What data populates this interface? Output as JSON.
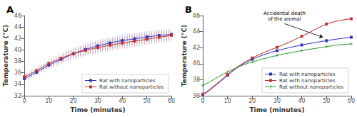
{
  "chart_data": [
    {
      "type": "line",
      "title": "A",
      "xlabel": "Time (minutes)",
      "ylabel": "Temperature (°C)",
      "xlim": [
        0,
        60
      ],
      "ylim": [
        32,
        46
      ],
      "xticks": [
        0,
        10,
        20,
        30,
        40,
        50,
        60
      ],
      "yticks": [
        32,
        34,
        36,
        38,
        40,
        42,
        44,
        46
      ],
      "grid": false,
      "legend": "lower right",
      "series": [
        {
          "name": "Rat with nanoparticles",
          "color": "#3333bb",
          "marker": "s",
          "x": [
            0,
            1,
            2,
            3,
            4,
            5,
            6,
            7,
            8,
            9,
            10,
            11,
            12,
            13,
            14,
            15,
            16,
            17,
            18,
            19,
            20,
            21,
            22,
            23,
            24,
            25,
            26,
            27,
            28,
            29,
            30,
            31,
            32,
            33,
            34,
            35,
            36,
            37,
            38,
            39,
            40,
            41,
            42,
            43,
            44,
            45,
            46,
            47,
            48,
            49,
            50,
            51,
            52,
            53,
            54,
            55,
            56,
            57,
            58,
            59,
            60
          ],
          "values": [
            35.0,
            35.2,
            35.4,
            35.65,
            35.9,
            36.1,
            36.35,
            36.6,
            36.85,
            37.1,
            37.35,
            37.55,
            37.75,
            37.95,
            38.15,
            38.35,
            38.55,
            38.75,
            38.95,
            39.15,
            39.35,
            39.5,
            39.65,
            39.8,
            39.95,
            40.1,
            40.22,
            40.35,
            40.47,
            40.6,
            40.72,
            40.82,
            40.92,
            41.02,
            41.12,
            41.22,
            41.32,
            41.4,
            41.48,
            41.56,
            41.64,
            41.7,
            41.76,
            41.82,
            41.88,
            41.95,
            42.02,
            42.08,
            42.14,
            42.2,
            42.27,
            42.33,
            42.38,
            42.43,
            42.48,
            42.52,
            42.57,
            42.61,
            42.65,
            42.68,
            42.72
          ],
          "yerr": [
            0.55,
            0.56,
            0.57,
            0.58,
            0.59,
            0.6,
            0.62,
            0.64,
            0.66,
            0.68,
            0.7,
            0.72,
            0.74,
            0.76,
            0.78,
            0.8,
            0.82,
            0.84,
            0.86,
            0.88,
            0.9,
            0.91,
            0.92,
            0.93,
            0.94,
            0.95,
            0.96,
            0.97,
            0.97,
            0.98,
            0.98,
            0.99,
            0.99,
            0.99,
            1.0,
            1.0,
            1.0,
            1.0,
            1.0,
            1.0,
            1.0,
            1.0,
            1.0,
            1.0,
            1.0,
            1.0,
            1.0,
            1.0,
            1.0,
            1.0,
            1.0,
            1.0,
            1.0,
            1.0,
            1.0,
            1.0,
            1.0,
            1.0,
            1.0,
            1.0,
            1.0
          ]
        },
        {
          "name": "Rat without nanoparticles",
          "color": "#bb3333",
          "marker": "s",
          "x": [
            0,
            1,
            2,
            3,
            4,
            5,
            6,
            7,
            8,
            9,
            10,
            11,
            12,
            13,
            14,
            15,
            16,
            17,
            18,
            19,
            20,
            21,
            22,
            23,
            24,
            25,
            26,
            27,
            28,
            29,
            30,
            31,
            32,
            33,
            34,
            35,
            36,
            37,
            38,
            39,
            40,
            41,
            42,
            43,
            44,
            45,
            46,
            47,
            48,
            49,
            50,
            51,
            52,
            53,
            54,
            55,
            56,
            57,
            58,
            59,
            60
          ],
          "values": [
            35.3,
            35.5,
            35.72,
            35.95,
            36.18,
            36.4,
            36.65,
            36.9,
            37.15,
            37.4,
            37.62,
            37.82,
            38.0,
            38.18,
            38.36,
            38.54,
            38.72,
            38.88,
            39.04,
            39.18,
            39.32,
            39.45,
            39.58,
            39.7,
            39.82,
            39.93,
            40.03,
            40.13,
            40.22,
            40.32,
            40.42,
            40.5,
            40.58,
            40.66,
            40.75,
            40.83,
            40.91,
            40.99,
            41.06,
            41.13,
            41.2,
            41.27,
            41.34,
            41.4,
            41.47,
            41.54,
            41.6,
            41.67,
            41.73,
            41.8,
            41.87,
            41.93,
            42.0,
            42.07,
            42.14,
            42.2,
            42.27,
            42.34,
            42.4,
            42.47,
            42.55
          ],
          "yerr": [
            0.55,
            0.56,
            0.57,
            0.58,
            0.59,
            0.6,
            0.62,
            0.64,
            0.66,
            0.68,
            0.7,
            0.72,
            0.74,
            0.76,
            0.78,
            0.8,
            0.82,
            0.84,
            0.86,
            0.88,
            0.9,
            0.91,
            0.92,
            0.93,
            0.94,
            0.95,
            0.96,
            0.97,
            0.97,
            0.98,
            0.98,
            0.99,
            0.99,
            0.99,
            1.0,
            1.0,
            1.0,
            1.0,
            1.0,
            1.0,
            1.0,
            1.0,
            1.0,
            1.0,
            1.0,
            1.0,
            1.0,
            1.0,
            1.0,
            1.0,
            1.0,
            1.0,
            1.0,
            1.0,
            1.0,
            1.0,
            1.0,
            1.0,
            1.0,
            1.0,
            1.0
          ]
        }
      ]
    },
    {
      "type": "line",
      "title": "B",
      "xlabel": "Time (minutes)",
      "ylabel": "Temperature (°C)",
      "xlim": [
        0,
        60
      ],
      "ylim": [
        36,
        46
      ],
      "xticks": [
        0,
        10,
        20,
        30,
        40,
        50,
        60
      ],
      "yticks": [
        36,
        38,
        40,
        42,
        44,
        46
      ],
      "grid": false,
      "legend": "lower right",
      "annotations": [
        {
          "text": "Accidental death\nof the animal",
          "xy": [
            48.5,
            43.3
          ],
          "xytext": [
            33,
            45.0
          ]
        }
      ],
      "series": [
        {
          "name": "Rat with nanoparticles",
          "color": "#3333bb",
          "marker": "s",
          "x": [
            0,
            2,
            4,
            6,
            8,
            10,
            12,
            14,
            16,
            18,
            20,
            22,
            24,
            26,
            28,
            30,
            32,
            34,
            36,
            38,
            40,
            42,
            44,
            46,
            48,
            50,
            52,
            54,
            56,
            58,
            60
          ],
          "values": [
            36.1,
            36.5,
            37.0,
            37.5,
            38.0,
            38.55,
            39.05,
            39.5,
            39.9,
            40.25,
            40.55,
            40.8,
            41.05,
            41.25,
            41.45,
            41.62,
            41.78,
            41.93,
            42.07,
            42.2,
            42.33,
            42.45,
            42.56,
            42.67,
            42.77,
            42.87,
            42.97,
            43.06,
            43.15,
            43.23,
            43.3
          ],
          "yerr": [
            0.1,
            0.1,
            0.1,
            0.1,
            0.1,
            0.1,
            0.1,
            0.1,
            0.1,
            0.1,
            0.1,
            0.1,
            0.1,
            0.1,
            0.1,
            0.1,
            0.1,
            0.1,
            0.1,
            0.1,
            0.1,
            0.1,
            0.1,
            0.1,
            0.1,
            0.1,
            0.1,
            0.1,
            0.1,
            0.1,
            0.1
          ]
        },
        {
          "name": "Rat with nanoparticles",
          "color": "#bb3333",
          "marker": "s",
          "x": [
            0,
            2,
            4,
            6,
            8,
            10,
            12,
            14,
            16,
            18,
            20,
            22,
            24,
            26,
            28,
            30,
            32,
            34,
            36,
            38,
            40,
            42,
            44,
            46,
            48,
            50,
            52,
            54,
            56,
            58,
            60
          ],
          "values": [
            36.2,
            36.6,
            37.1,
            37.6,
            38.1,
            38.65,
            39.15,
            39.6,
            40.0,
            40.38,
            40.72,
            41.02,
            41.3,
            41.56,
            41.8,
            42.05,
            42.3,
            42.56,
            42.83,
            43.12,
            43.42,
            43.73,
            44.05,
            44.37,
            44.67,
            44.95,
            45.15,
            45.3,
            45.42,
            45.52,
            45.6
          ],
          "yerr": [
            0.1,
            0.1,
            0.1,
            0.1,
            0.1,
            0.1,
            0.1,
            0.1,
            0.1,
            0.1,
            0.1,
            0.1,
            0.1,
            0.1,
            0.1,
            0.1,
            0.1,
            0.1,
            0.1,
            0.1,
            0.1,
            0.1,
            0.1,
            0.1,
            0.1,
            0.1,
            0.1,
            0.1,
            0.1,
            0.1,
            0.1
          ]
        },
        {
          "name": "Rat without nanoparticles",
          "color": "#339933",
          "marker": "+",
          "x": [
            0,
            2,
            4,
            6,
            8,
            10,
            12,
            14,
            16,
            18,
            20,
            22,
            24,
            26,
            28,
            30,
            32,
            34,
            36,
            38,
            40,
            42,
            44,
            46,
            48,
            50,
            52,
            54,
            56,
            58,
            60
          ],
          "values": [
            37.3,
            37.6,
            37.95,
            38.3,
            38.65,
            38.97,
            39.27,
            39.55,
            39.8,
            40.02,
            40.22,
            40.4,
            40.57,
            40.73,
            40.88,
            41.02,
            41.16,
            41.28,
            41.4,
            41.52,
            41.63,
            41.73,
            41.83,
            41.93,
            42.03,
            42.13,
            42.22,
            42.3,
            42.38,
            42.42,
            42.47
          ],
          "yerr": [
            0.1,
            0.1,
            0.1,
            0.1,
            0.1,
            0.1,
            0.1,
            0.1,
            0.1,
            0.1,
            0.1,
            0.1,
            0.1,
            0.1,
            0.1,
            0.1,
            0.1,
            0.1,
            0.1,
            0.1,
            0.1,
            0.1,
            0.1,
            0.1,
            0.1,
            0.1,
            0.1,
            0.1,
            0.1,
            0.1,
            0.1
          ]
        }
      ]
    }
  ]
}
